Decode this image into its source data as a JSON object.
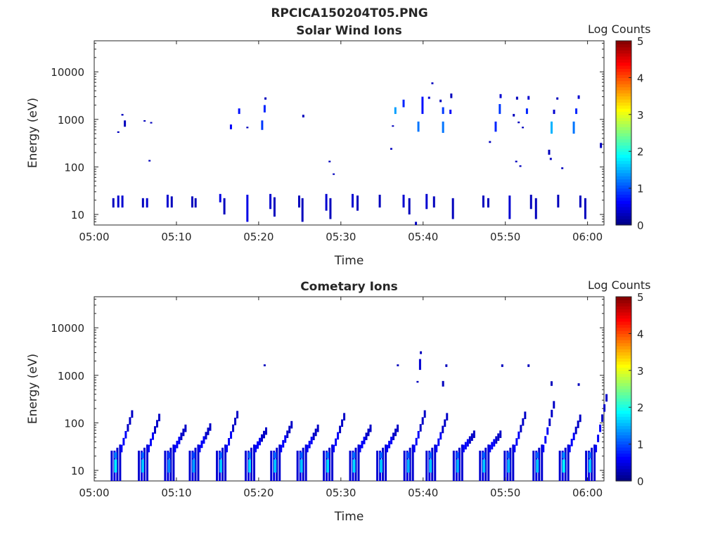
{
  "figure_title": "RPCICA150204T05.PNG",
  "colorbar": {
    "label": "Log Counts",
    "range": [
      0,
      5
    ],
    "ticks": [
      "0",
      "1",
      "2",
      "3",
      "4",
      "5"
    ],
    "colormap": "jet"
  },
  "chart_data": [
    {
      "type": "heatmap",
      "title": "Solar Wind Ions",
      "xlabel": "Time",
      "ylabel": "Energy (eV)",
      "yscale": "log",
      "ylim": [
        6,
        45000
      ],
      "xlim": [
        "05:00",
        "06:02"
      ],
      "x_ticks": [
        "05:00",
        "05:10",
        "05:20",
        "05:30",
        "05:40",
        "05:50",
        "06:00"
      ],
      "y_ticks": [
        "10",
        "100",
        "1000",
        "10000"
      ],
      "marks": [
        {
          "t": 2.2,
          "e_lo": 14,
          "e_hi": 22,
          "v": 0.3
        },
        {
          "t": 2.8,
          "e_lo": 14,
          "e_hi": 25,
          "v": 0.4
        },
        {
          "t": 3.3,
          "e_lo": 14,
          "e_hi": 25,
          "v": 0.4
        },
        {
          "t": 5.8,
          "e_lo": 14,
          "e_hi": 22,
          "v": 0.3
        },
        {
          "t": 6.3,
          "e_lo": 14,
          "e_hi": 22,
          "v": 0.4
        },
        {
          "t": 8.8,
          "e_lo": 14,
          "e_hi": 26,
          "v": 0.4
        },
        {
          "t": 9.3,
          "e_lo": 14,
          "e_hi": 24,
          "v": 0.3
        },
        {
          "t": 11.8,
          "e_lo": 14,
          "e_hi": 24,
          "v": 0.3
        },
        {
          "t": 12.2,
          "e_lo": 14,
          "e_hi": 22,
          "v": 0.3
        },
        {
          "t": 15.2,
          "e_lo": 18,
          "e_hi": 27,
          "v": 0.5
        },
        {
          "t": 15.7,
          "e_lo": 10,
          "e_hi": 22,
          "v": 0.3
        },
        {
          "t": 18.5,
          "e_lo": 7,
          "e_hi": 26,
          "v": 0.5
        },
        {
          "t": 21.3,
          "e_lo": 13,
          "e_hi": 27,
          "v": 0.4
        },
        {
          "t": 21.8,
          "e_lo": 9,
          "e_hi": 23,
          "v": 0.3
        },
        {
          "t": 24.8,
          "e_lo": 14,
          "e_hi": 25,
          "v": 0.3
        },
        {
          "t": 25.2,
          "e_lo": 7,
          "e_hi": 22,
          "v": 0.3
        },
        {
          "t": 28.1,
          "e_lo": 12,
          "e_hi": 27,
          "v": 0.4
        },
        {
          "t": 28.6,
          "e_lo": 8,
          "e_hi": 22,
          "v": 0.3
        },
        {
          "t": 31.3,
          "e_lo": 14,
          "e_hi": 27,
          "v": 0.4
        },
        {
          "t": 31.9,
          "e_lo": 12,
          "e_hi": 25,
          "v": 0.3
        },
        {
          "t": 34.6,
          "e_lo": 14,
          "e_hi": 26,
          "v": 0.3
        },
        {
          "t": 37.5,
          "e_lo": 14,
          "e_hi": 26,
          "v": 0.4
        },
        {
          "t": 38.2,
          "e_lo": 10,
          "e_hi": 22,
          "v": 0.3
        },
        {
          "t": 40.3,
          "e_lo": 13,
          "e_hi": 27,
          "v": 0.4
        },
        {
          "t": 41.2,
          "e_lo": 14,
          "e_hi": 24,
          "v": 0.3
        },
        {
          "t": 43.5,
          "e_lo": 8,
          "e_hi": 22,
          "v": 0.3
        },
        {
          "t": 47.2,
          "e_lo": 14,
          "e_hi": 25,
          "v": 0.3
        },
        {
          "t": 47.8,
          "e_lo": 14,
          "e_hi": 22,
          "v": 0.3
        },
        {
          "t": 50.4,
          "e_lo": 8,
          "e_hi": 25,
          "v": 0.4
        },
        {
          "t": 53.0,
          "e_lo": 13,
          "e_hi": 26,
          "v": 0.3
        },
        {
          "t": 53.6,
          "e_lo": 8,
          "e_hi": 22,
          "v": 0.3
        },
        {
          "t": 56.3,
          "e_lo": 14,
          "e_hi": 26,
          "v": 0.3
        },
        {
          "t": 59.0,
          "e_lo": 14,
          "e_hi": 25,
          "v": 0.3
        },
        {
          "t": 59.6,
          "e_lo": 8,
          "e_hi": 22,
          "v": 0.3
        },
        {
          "t": 39.0,
          "e_lo": 6,
          "e_hi": 7,
          "v": 0.3
        },
        {
          "t": 2.8,
          "e_lo": 520,
          "e_hi": 560,
          "v": 0.3
        },
        {
          "t": 3.3,
          "e_lo": 1200,
          "e_hi": 1300,
          "v": 0.3
        },
        {
          "t": 3.6,
          "e_lo": 700,
          "e_hi": 950,
          "v": 0.3
        },
        {
          "t": 6.0,
          "e_lo": 900,
          "e_hi": 960,
          "v": 0.3
        },
        {
          "t": 6.8,
          "e_lo": 820,
          "e_hi": 880,
          "v": 0.3
        },
        {
          "t": 6.6,
          "e_lo": 130,
          "e_hi": 140,
          "v": 0.3
        },
        {
          "t": 16.5,
          "e_lo": 620,
          "e_hi": 780,
          "v": 0.6
        },
        {
          "t": 17.5,
          "e_lo": 1300,
          "e_hi": 1700,
          "v": 0.7
        },
        {
          "t": 18.5,
          "e_lo": 650,
          "e_hi": 700,
          "v": 0.3
        },
        {
          "t": 20.3,
          "e_lo": 600,
          "e_hi": 950,
          "v": 0.9
        },
        {
          "t": 20.6,
          "e_lo": 1400,
          "e_hi": 2000,
          "v": 0.8
        },
        {
          "t": 20.7,
          "e_lo": 2600,
          "e_hi": 2900,
          "v": 0.3
        },
        {
          "t": 25.3,
          "e_lo": 1100,
          "e_hi": 1250,
          "v": 0.3
        },
        {
          "t": 28.5,
          "e_lo": 125,
          "e_hi": 135,
          "v": 0.3
        },
        {
          "t": 29.0,
          "e_lo": 68,
          "e_hi": 73,
          "v": 0.3
        },
        {
          "t": 36.0,
          "e_lo": 230,
          "e_hi": 250,
          "v": 0.3
        },
        {
          "t": 36.2,
          "e_lo": 700,
          "e_hi": 750,
          "v": 0.3
        },
        {
          "t": 36.5,
          "e_lo": 1300,
          "e_hi": 1800,
          "v": 1.4
        },
        {
          "t": 37.5,
          "e_lo": 1800,
          "e_hi": 2600,
          "v": 0.8
        },
        {
          "t": 39.3,
          "e_lo": 550,
          "e_hi": 900,
          "v": 1.2
        },
        {
          "t": 39.8,
          "e_lo": 1300,
          "e_hi": 3000,
          "v": 0.7
        },
        {
          "t": 40.6,
          "e_lo": 2700,
          "e_hi": 3000,
          "v": 0.4
        },
        {
          "t": 41.0,
          "e_lo": 5500,
          "e_hi": 6000,
          "v": 0.3
        },
        {
          "t": 42.0,
          "e_lo": 2300,
          "e_hi": 2600,
          "v": 0.3
        },
        {
          "t": 42.3,
          "e_lo": 1300,
          "e_hi": 1800,
          "v": 0.9
        },
        {
          "t": 42.3,
          "e_lo": 520,
          "e_hi": 900,
          "v": 1.2
        },
        {
          "t": 43.2,
          "e_lo": 1300,
          "e_hi": 1600,
          "v": 0.6
        },
        {
          "t": 43.3,
          "e_lo": 2800,
          "e_hi": 3500,
          "v": 0.3
        },
        {
          "t": 48.0,
          "e_lo": 320,
          "e_hi": 350,
          "v": 0.3
        },
        {
          "t": 48.7,
          "e_lo": 550,
          "e_hi": 900,
          "v": 0.8
        },
        {
          "t": 49.2,
          "e_lo": 1300,
          "e_hi": 2100,
          "v": 0.9
        },
        {
          "t": 49.3,
          "e_lo": 2800,
          "e_hi": 3400,
          "v": 0.4
        },
        {
          "t": 50.9,
          "e_lo": 1150,
          "e_hi": 1300,
          "v": 0.3
        },
        {
          "t": 51.3,
          "e_lo": 2600,
          "e_hi": 3000,
          "v": 0.3
        },
        {
          "t": 51.5,
          "e_lo": 830,
          "e_hi": 900,
          "v": 0.3
        },
        {
          "t": 51.2,
          "e_lo": 125,
          "e_hi": 135,
          "v": 0.3
        },
        {
          "t": 51.7,
          "e_lo": 100,
          "e_hi": 108,
          "v": 0.3
        },
        {
          "t": 52.0,
          "e_lo": 650,
          "e_hi": 700,
          "v": 0.3
        },
        {
          "t": 52.5,
          "e_lo": 1300,
          "e_hi": 1700,
          "v": 0.8
        },
        {
          "t": 52.7,
          "e_lo": 2600,
          "e_hi": 3100,
          "v": 0.4
        },
        {
          "t": 55.5,
          "e_lo": 500,
          "e_hi": 900,
          "v": 1.5
        },
        {
          "t": 55.2,
          "e_lo": 180,
          "e_hi": 230,
          "v": 0.3
        },
        {
          "t": 55.4,
          "e_lo": 140,
          "e_hi": 155,
          "v": 0.3
        },
        {
          "t": 55.8,
          "e_lo": 1300,
          "e_hi": 1600,
          "v": 0.4
        },
        {
          "t": 56.2,
          "e_lo": 2600,
          "e_hi": 2900,
          "v": 0.3
        },
        {
          "t": 56.8,
          "e_lo": 90,
          "e_hi": 98,
          "v": 0.3
        },
        {
          "t": 58.2,
          "e_lo": 500,
          "e_hi": 900,
          "v": 1.2
        },
        {
          "t": 58.5,
          "e_lo": 1300,
          "e_hi": 1700,
          "v": 0.8
        },
        {
          "t": 58.8,
          "e_lo": 2700,
          "e_hi": 3200,
          "v": 0.4
        },
        {
          "t": 61.5,
          "e_lo": 250,
          "e_hi": 320,
          "v": 0.3
        }
      ]
    },
    {
      "type": "heatmap",
      "title": "Cometary Ions",
      "xlabel": "Time",
      "ylabel": "Energy (eV)",
      "yscale": "log",
      "ylim": [
        6,
        45000
      ],
      "xlim": [
        "05:00",
        "06:02"
      ],
      "x_ticks": [
        "05:00",
        "05:10",
        "05:20",
        "05:30",
        "05:40",
        "05:50",
        "06:00"
      ],
      "y_ticks": [
        "10",
        "100",
        "1000",
        "10000"
      ],
      "bursts": [
        {
          "t": 2.0,
          "top": 160,
          "core": 1.8
        },
        {
          "t": 5.3,
          "top": 135,
          "core": 1.6
        },
        {
          "t": 8.5,
          "top": 80,
          "core": 1.3
        },
        {
          "t": 11.5,
          "top": 85,
          "core": 1.4
        },
        {
          "t": 14.8,
          "top": 155,
          "core": 1.6
        },
        {
          "t": 18.3,
          "top": 70,
          "core": 1.7
        },
        {
          "t": 21.4,
          "top": 95,
          "core": 1.6
        },
        {
          "t": 24.6,
          "top": 80,
          "core": 1.6
        },
        {
          "t": 27.8,
          "top": 140,
          "core": 1.7
        },
        {
          "t": 31.0,
          "top": 80,
          "core": 1.7
        },
        {
          "t": 34.3,
          "top": 80,
          "core": 1.6
        },
        {
          "t": 37.6,
          "top": 160,
          "core": 1.5
        },
        {
          "t": 40.3,
          "top": 140,
          "core": 1.6
        },
        {
          "t": 43.6,
          "top": 60,
          "core": 1.5
        },
        {
          "t": 46.8,
          "top": 60,
          "core": 1.6
        },
        {
          "t": 49.8,
          "top": 150,
          "core": 1.5
        },
        {
          "t": 53.3,
          "top": 250,
          "core": 1.6
        },
        {
          "t": 56.5,
          "top": 130,
          "core": 1.9
        },
        {
          "t": 59.7,
          "top": 350,
          "core": 1.6
        }
      ],
      "marks": [
        {
          "t": 20.6,
          "e_lo": 1550,
          "e_hi": 1700,
          "v": 0.3
        },
        {
          "t": 36.8,
          "e_lo": 1550,
          "e_hi": 1700,
          "v": 0.3
        },
        {
          "t": 39.2,
          "e_lo": 700,
          "e_hi": 760,
          "v": 0.3
        },
        {
          "t": 39.5,
          "e_lo": 1300,
          "e_hi": 2200,
          "v": 0.4
        },
        {
          "t": 39.6,
          "e_lo": 2800,
          "e_hi": 3200,
          "v": 0.3
        },
        {
          "t": 42.3,
          "e_lo": 580,
          "e_hi": 760,
          "v": 0.3
        },
        {
          "t": 42.7,
          "e_lo": 1500,
          "e_hi": 1700,
          "v": 0.3
        },
        {
          "t": 49.5,
          "e_lo": 1500,
          "e_hi": 1700,
          "v": 0.3
        },
        {
          "t": 52.7,
          "e_lo": 1500,
          "e_hi": 1700,
          "v": 0.3
        },
        {
          "t": 55.5,
          "e_lo": 600,
          "e_hi": 750,
          "v": 0.3
        },
        {
          "t": 58.8,
          "e_lo": 600,
          "e_hi": 680,
          "v": 0.3
        }
      ]
    }
  ]
}
